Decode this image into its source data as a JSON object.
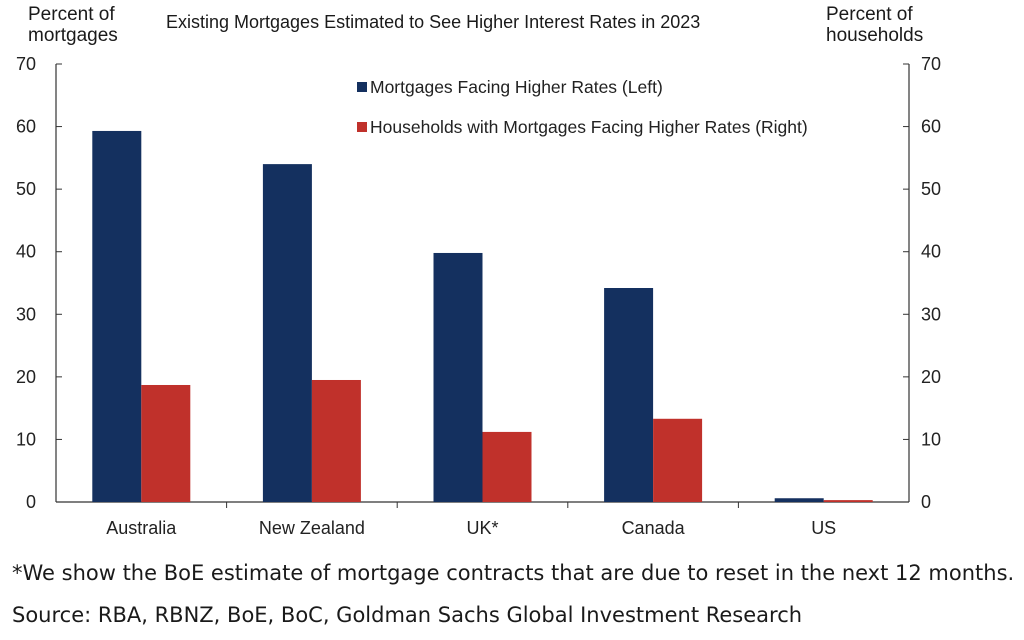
{
  "chart_data": {
    "type": "bar",
    "title": "Existing Mortgages Estimated to See Higher Interest Rates in 2023",
    "ylabel_left": "Percent of\nmortgages",
    "ylabel_right": "Percent of\nhouseholds",
    "ylim": [
      0,
      70
    ],
    "yticks": [
      0,
      10,
      20,
      30,
      40,
      50,
      60,
      70
    ],
    "categories": [
      "Australia",
      "New Zealand",
      "UK*",
      "Canada",
      "US"
    ],
    "series": [
      {
        "name": "Mortgages Facing Higher Rates (Left)",
        "axis": "left",
        "color": "#14305f",
        "values": [
          59.3,
          54.0,
          39.8,
          34.2,
          0.6
        ]
      },
      {
        "name": "Households with Mortgages Facing Higher Rates (Right)",
        "axis": "right",
        "color": "#c0312b",
        "values": [
          18.7,
          19.5,
          11.2,
          13.3,
          0.3
        ]
      }
    ],
    "legend_position": "top-right",
    "grid": false
  },
  "footnote": "*We show the BoE estimate of mortgage contracts that are due to reset in the next 12 months.",
  "source": "Source: RBA, RBNZ, BoE, BoC, Goldman Sachs Global Investment Research"
}
